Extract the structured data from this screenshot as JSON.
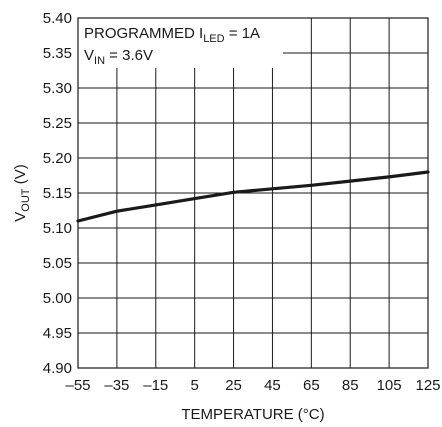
{
  "chart_data": {
    "type": "line",
    "title": "",
    "xlabel": "TEMPERATURE (°C)",
    "ylabel_main": "V",
    "ylabel_sub": "OUT",
    "ylabel_tail": " (V)",
    "xlim": [
      -55,
      125
    ],
    "ylim": [
      4.9,
      5.4
    ],
    "grid": true,
    "x_ticks": [
      "–55",
      "–35",
      "–15",
      "5",
      "25",
      "45",
      "65",
      "85",
      "105",
      "125"
    ],
    "y_ticks": [
      "4.90",
      "4.95",
      "5.00",
      "5.05",
      "5.10",
      "5.15",
      "5.20",
      "5.25",
      "5.30",
      "5.35",
      "5.40"
    ],
    "annotations": {
      "line1_main": "PROGRAMMED I",
      "line1_sub": "LED",
      "line1_tail": " = 1A",
      "line2_main": "V",
      "line2_sub": "IN",
      "line2_tail": " = 3.6V"
    },
    "series": [
      {
        "x": [
          -55,
          -35,
          -15,
          5,
          25,
          45,
          65,
          85,
          105,
          125
        ],
        "y": [
          5.11,
          5.124,
          5.133,
          5.142,
          5.151,
          5.156,
          5.161,
          5.167,
          5.173,
          5.18
        ]
      }
    ]
  }
}
